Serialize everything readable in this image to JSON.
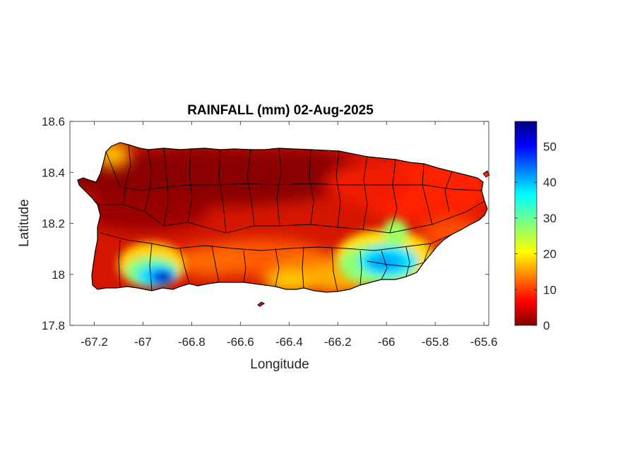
{
  "figure": {
    "title": "RAINFALL (mm) 02-Aug-2025"
  },
  "map": {
    "region": "Puerto Rico",
    "xlabel": "Longitude",
    "ylabel": "Latitude",
    "xlim": [
      -67.3,
      -65.58
    ],
    "ylim": [
      17.8,
      18.6
    ],
    "xticks": [
      -67.2,
      -67,
      -66.8,
      -66.6,
      -66.4,
      -66.2,
      -66,
      -65.8,
      -65.6
    ],
    "yticks": [
      17.8,
      18,
      18.2,
      18.4,
      18.6
    ],
    "xtick_labels": [
      "-67.2",
      "-67",
      "-66.8",
      "-66.6",
      "-66.4",
      "-66.2",
      "-66",
      "-65.8",
      "-65.6"
    ],
    "ytick_labels": [
      "17.8",
      "18",
      "18.2",
      "18.4",
      "18.6"
    ],
    "rainfall_hotspots": [
      {
        "area": "southwest coast",
        "lon": -66.92,
        "lat": 17.99,
        "value_mm": 56
      },
      {
        "area": "southeast (Guayama/Patillas)",
        "lon": -66.0,
        "lat": 18.06,
        "value_mm": 38
      },
      {
        "area": "south-central coast",
        "lon": -66.25,
        "lat": 17.98,
        "value_mm": 18
      },
      {
        "area": "northwest tip",
        "lon": -67.12,
        "lat": 18.47,
        "value_mm": 20
      }
    ]
  },
  "colorbar": {
    "colormap": "jet (reversed: dark red = 0, dark blue = max)",
    "min": 0,
    "max": 57,
    "ticks": [
      0,
      10,
      20,
      30,
      40,
      50
    ],
    "tick_labels": [
      "0",
      "10",
      "20",
      "30",
      "40",
      "50"
    ]
  }
}
